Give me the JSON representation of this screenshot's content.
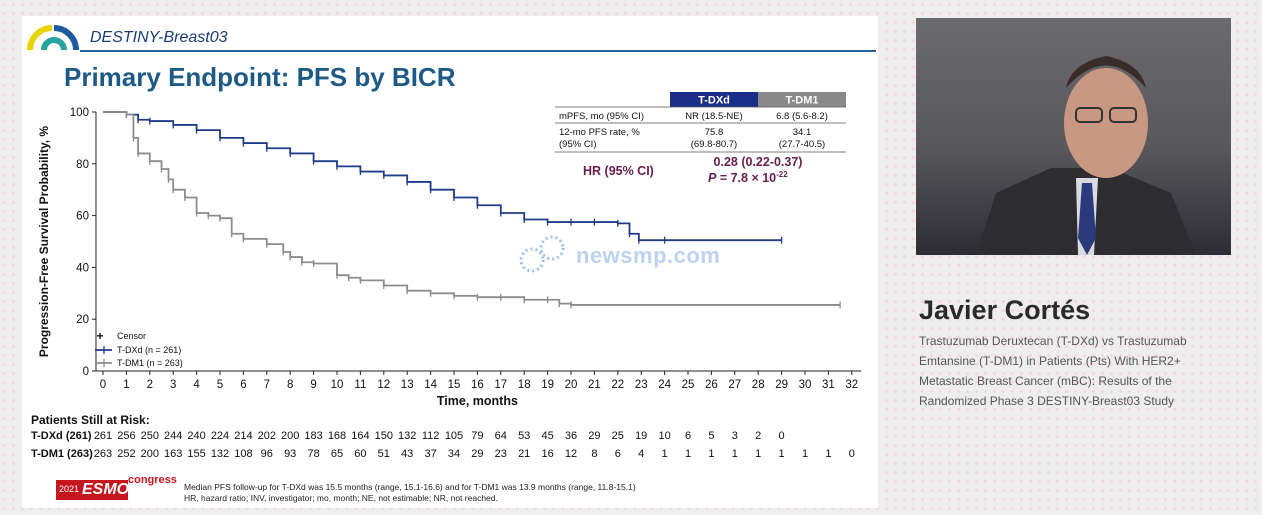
{
  "slide": {
    "brand": "DESTINY-Breast03",
    "title": "Primary Endpoint: PFS by BICR"
  },
  "table": {
    "headers": [
      "T-DXd",
      "T-DM1"
    ],
    "rows": [
      {
        "label": "mPFS, mo (95% CI)",
        "tdxd": "NR (18.5-NE)",
        "tdm1": "6.8 (5.6-8.2)"
      },
      {
        "label1": "12-mo PFS rate, %",
        "label2": "(95% CI)",
        "tdxd1": "75.8",
        "tdxd2": "(69.8-80.7)",
        "tdm11": "34.1",
        "tdm12": "(27.7-40.5)"
      }
    ],
    "hr_label": "HR (95% CI)",
    "hr_value": "0.28 (0.22-0.37)",
    "p_prefix": "P",
    "p_mid": " = 7.8 × 10",
    "p_exp": "-22"
  },
  "chart_data": {
    "type": "line",
    "subtype": "kaplan-meier",
    "xlabel": "Time,  months",
    "ylabel": "Progression-Free Survival Probability, %",
    "xlim": [
      0,
      32
    ],
    "ylim": [
      0,
      100
    ],
    "x_ticks": [
      0,
      1,
      2,
      3,
      4,
      5,
      6,
      7,
      8,
      9,
      10,
      11,
      12,
      13,
      14,
      15,
      16,
      17,
      18,
      19,
      20,
      21,
      22,
      23,
      24,
      25,
      26,
      27,
      28,
      29,
      30,
      31,
      32
    ],
    "y_ticks": [
      0,
      20,
      40,
      60,
      80,
      100
    ],
    "legend": {
      "placement": "bottom-left",
      "censor_label": "Censor"
    },
    "series": [
      {
        "name": "T-DXd (n = 261)",
        "color": "#1f3c8a",
        "points": [
          [
            0,
            100
          ],
          [
            1,
            99
          ],
          [
            1.5,
            97
          ],
          [
            2,
            96.5
          ],
          [
            3,
            95
          ],
          [
            4,
            93
          ],
          [
            5,
            90
          ],
          [
            6,
            88
          ],
          [
            7,
            86
          ],
          [
            8,
            84
          ],
          [
            9,
            81
          ],
          [
            10,
            79
          ],
          [
            11,
            77
          ],
          [
            12,
            75.5
          ],
          [
            13,
            73
          ],
          [
            14,
            70
          ],
          [
            15,
            67
          ],
          [
            16,
            64
          ],
          [
            17,
            61
          ],
          [
            18,
            58.5
          ],
          [
            19,
            57.5
          ],
          [
            20,
            57.5
          ],
          [
            21,
            57.5
          ],
          [
            22,
            57
          ],
          [
            22.5,
            53
          ],
          [
            22.9,
            50.5
          ],
          [
            24,
            50.5
          ],
          [
            29,
            50.5
          ]
        ]
      },
      {
        "name": "T-DM1 (n = 263)",
        "color": "#8c8c8c",
        "points": [
          [
            0,
            100
          ],
          [
            1,
            99
          ],
          [
            1.3,
            90
          ],
          [
            1.5,
            84
          ],
          [
            2,
            81
          ],
          [
            2.5,
            78
          ],
          [
            2.8,
            74
          ],
          [
            3,
            70
          ],
          [
            3.5,
            67
          ],
          [
            4,
            61
          ],
          [
            4.5,
            60
          ],
          [
            5,
            59
          ],
          [
            5.5,
            53
          ],
          [
            6,
            51
          ],
          [
            7,
            49
          ],
          [
            7.7,
            46
          ],
          [
            8,
            44
          ],
          [
            8.5,
            42
          ],
          [
            9,
            41.5
          ],
          [
            10,
            37
          ],
          [
            10.5,
            36
          ],
          [
            11,
            35
          ],
          [
            12,
            33
          ],
          [
            13,
            31
          ],
          [
            14,
            30
          ],
          [
            15,
            29
          ],
          [
            16,
            28.5
          ],
          [
            17,
            28.5
          ],
          [
            18,
            27.5
          ],
          [
            19,
            27.5
          ],
          [
            19.5,
            26
          ],
          [
            20,
            25.5
          ],
          [
            31.5,
            25.5
          ]
        ]
      }
    ]
  },
  "risk": {
    "title": "Patients Still at Risk:",
    "rows": [
      {
        "label": "T-DXd (261)",
        "values": [
          "261",
          "256",
          "250",
          "244",
          "240",
          "224",
          "214",
          "202",
          "200",
          "183",
          "168",
          "164",
          "150",
          "132",
          "112",
          "105",
          "79",
          "64",
          "53",
          "45",
          "36",
          "29",
          "25",
          "19",
          "10",
          "6",
          "5",
          "3",
          "2",
          "0"
        ]
      },
      {
        "label": "T-DM1 (263)",
        "values": [
          "263",
          "252",
          "200",
          "163",
          "155",
          "132",
          "108",
          "96",
          "93",
          "78",
          "65",
          "60",
          "51",
          "43",
          "37",
          "34",
          "29",
          "23",
          "21",
          "16",
          "12",
          "8",
          "6",
          "4",
          "1",
          "1",
          "1",
          "1",
          "1",
          "1",
          "1",
          "1",
          "0"
        ]
      }
    ]
  },
  "footnotes": [
    "Median PFS follow-up for T-DXd was 15.5 months (range, 15.1-16.6) and for T-DM1 was 13.9 months (range, 11.8-15.1)",
    "HR, hazard ratio; INV, investigator; mo, month; NE, not estimable; NR, not reached."
  ],
  "esmo": {
    "year": "2021",
    "name": "ESMO",
    "tag": "congress"
  },
  "watermark": "newsmp.com",
  "speaker": {
    "name": "Javier Cortés",
    "description": "Trastuzumab Deruxtecan (T-DXd) vs Trastuzumab Emtansine (T-DM1) in Patients (Pts) With HER2+ Metastatic Breast Cancer (mBC): Results of the Randomized Phase 3 DESTINY-Breast03 Study"
  },
  "colors": {
    "tdxd": "#1f3c8a",
    "tdm1": "#8c8c8c",
    "header_tdxd": "#1a2f8a",
    "header_tdm1": "#8a8a8a",
    "hr": "#6a1e4e",
    "title": "#1e5a86"
  }
}
